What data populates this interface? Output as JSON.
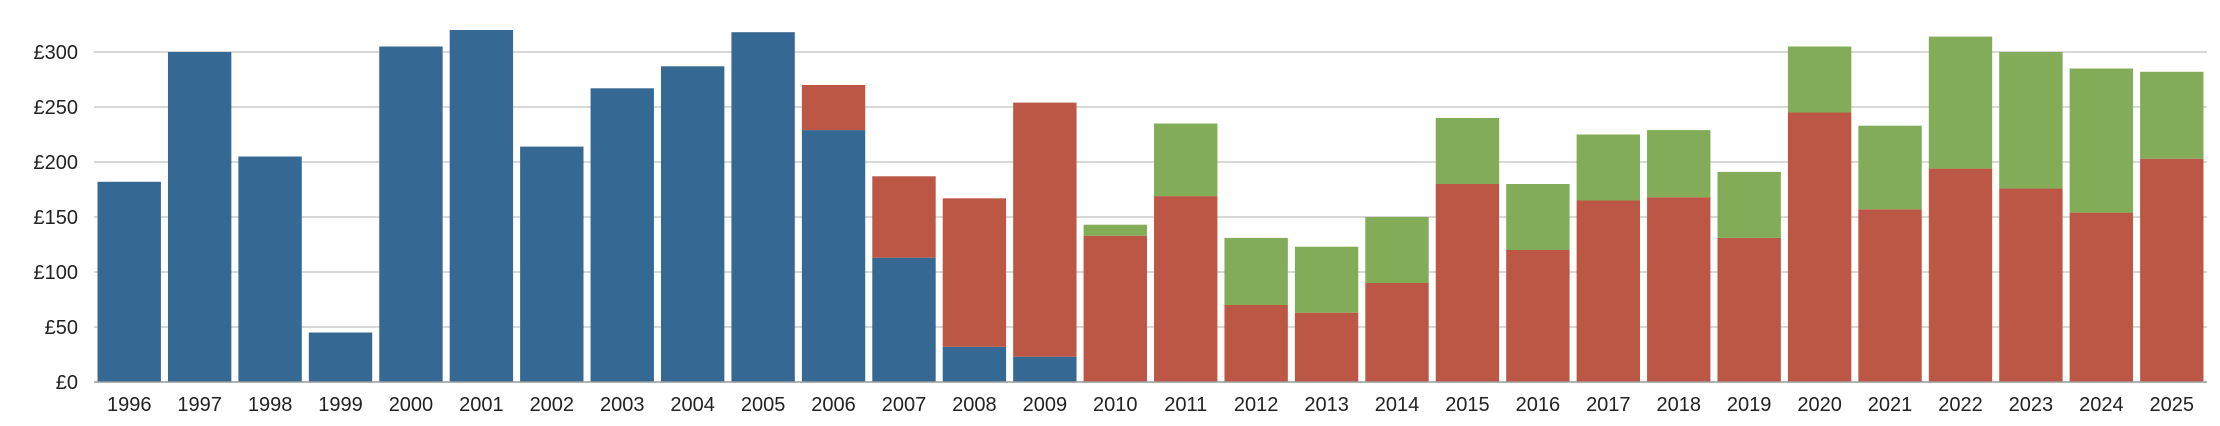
{
  "chart_data": {
    "type": "bar",
    "stacked": true,
    "categories": [
      "1996",
      "1997",
      "1998",
      "1999",
      "2000",
      "2001",
      "2002",
      "2003",
      "2004",
      "2005",
      "2006",
      "2007",
      "2008",
      "2009",
      "2010",
      "2011",
      "2012",
      "2013",
      "2014",
      "2015",
      "2016",
      "2017",
      "2018",
      "2019",
      "2020",
      "2021",
      "2022",
      "2023",
      "2024",
      "2025"
    ],
    "series": [
      {
        "color": "#356893",
        "values": [
          182,
          300,
          205,
          45,
          305,
          320,
          214,
          267,
          287,
          318,
          229,
          113,
          32,
          23,
          0,
          0,
          0,
          0,
          0,
          0,
          0,
          0,
          0,
          0,
          0,
          0,
          0,
          0,
          0,
          0
        ]
      },
      {
        "color": "#bd5745",
        "values": [
          0,
          0,
          0,
          0,
          0,
          0,
          0,
          0,
          0,
          0,
          41,
          74,
          135,
          231,
          133,
          169,
          70,
          63,
          90,
          180,
          120,
          165,
          168,
          131,
          245,
          157,
          194,
          176,
          154,
          203
        ]
      },
      {
        "color": "#82ac57",
        "values": [
          0,
          0,
          0,
          0,
          0,
          0,
          0,
          0,
          0,
          0,
          0,
          0,
          0,
          0,
          10,
          66,
          61,
          60,
          60,
          60,
          60,
          60,
          61,
          60,
          60,
          76,
          120,
          124,
          131,
          79
        ]
      }
    ],
    "ylim": [
      0,
      320
    ],
    "yticks": [
      0,
      50,
      100,
      150,
      200,
      250,
      300
    ],
    "ytick_labels": [
      "£0",
      "£50",
      "£100",
      "£150",
      "£200",
      "£250",
      "£300"
    ],
    "grid": true,
    "legend": "none",
    "title": "",
    "xlabel": "",
    "ylabel": ""
  }
}
